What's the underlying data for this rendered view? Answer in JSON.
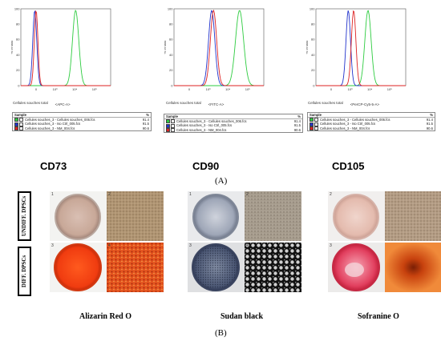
{
  "flow": {
    "y_axis_label": "% of Max",
    "y_ticks": [
      "100",
      "80",
      "60",
      "40",
      "20",
      "0"
    ],
    "x_tick_labels": [
      "0",
      "10³",
      "10⁴",
      "10⁵"
    ],
    "x_tick_labels_apc": [
      "0",
      "10³",
      "10⁴",
      "10⁵"
    ],
    "sample_label": "Cellules souches total",
    "legend_header_sample": "Sample",
    "legend_header_pct": "%",
    "legend_rows": [
      {
        "name": "Cellules souches_3 - Cellules souches_006.fcs",
        "pct": "91.4",
        "color": "#2ecc40"
      },
      {
        "name": "Cellules souches_3 - Iso Ctrl_005.fcs",
        "pct": "91.5",
        "color": "#2233cc"
      },
      {
        "name": "Cellules souches_3 - NM_004.fcs",
        "pct": "90.6",
        "color": "#dd2222"
      }
    ],
    "panels": [
      {
        "marker": "CD73",
        "channel": "<APC-A>"
      },
      {
        "marker": "CD90",
        "channel": "<FITC-A>"
      },
      {
        "marker": "CD105",
        "channel": "<PerCP-Cy5-5-A>"
      }
    ]
  },
  "panel_a_label": "(A)",
  "panel_b_label": "(B)",
  "row_labels": {
    "undiff": "UNDIFF. DPSCs",
    "diff": "DIFF. DPSCs"
  },
  "stains": [
    "Alizarin Red O",
    "Sudan black",
    "Sofranine O"
  ],
  "tile_numbers": [
    "1",
    "2",
    "3",
    "4",
    "1",
    "2",
    "3",
    "4",
    "2",
    "3"
  ]
}
